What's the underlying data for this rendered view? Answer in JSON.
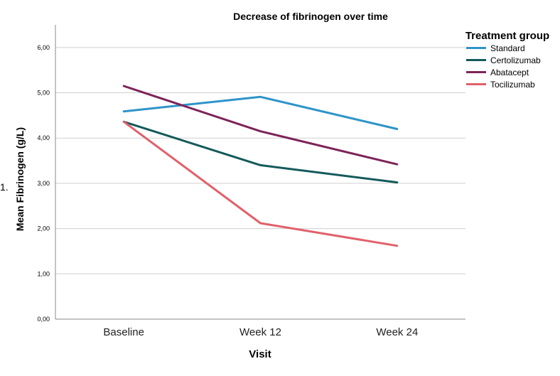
{
  "list_number": "1.",
  "chart_data": {
    "type": "line",
    "title": "Decrease of fibrinogen over time",
    "xlabel": "Visit",
    "ylabel": "Mean Fibrinogen (g/L)",
    "categories": [
      "Baseline",
      "Week 12",
      "Week 24"
    ],
    "ylim": [
      0,
      6.5
    ],
    "yticks": [
      "0,00",
      "1,00",
      "2,00",
      "3,00",
      "4,00",
      "5,00",
      "6,00"
    ],
    "ytick_values": [
      0,
      1,
      2,
      3,
      4,
      5,
      6
    ],
    "grid": true,
    "legend_title": "Treatment group",
    "legend_position": "right",
    "series": [
      {
        "name": "Standard",
        "color": "#2e94c9",
        "values": [
          4.59,
          4.91,
          4.2
        ]
      },
      {
        "name": "Certolizumab",
        "color": "#145a5a",
        "values": [
          4.36,
          3.4,
          3.02
        ]
      },
      {
        "name": "Abatacept",
        "color": "#7d2459",
        "values": [
          5.15,
          4.15,
          3.42
        ]
      },
      {
        "name": "Tocilizumab",
        "color": "#e0616a",
        "values": [
          4.36,
          2.12,
          1.62
        ]
      }
    ]
  }
}
